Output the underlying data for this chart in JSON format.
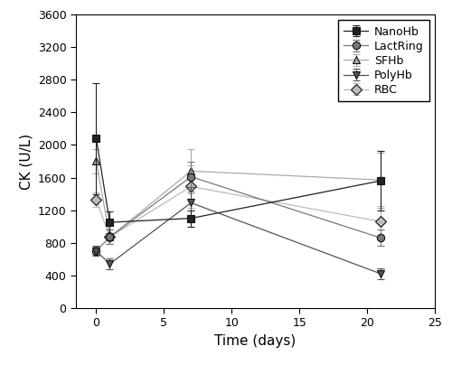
{
  "series": [
    {
      "name": "NanoHb",
      "x": [
        0,
        1,
        7,
        21
      ],
      "y": [
        2080,
        1050,
        1100,
        1560
      ],
      "yerr": [
        680,
        130,
        100,
        370
      ],
      "color": "#222222",
      "marker": "s",
      "label": "NanoHb",
      "zorder": 5
    },
    {
      "name": "LactRing",
      "x": [
        0,
        1,
        7,
        21
      ],
      "y": [
        700,
        870,
        1610,
        860
      ],
      "yerr": [
        50,
        90,
        180,
        100
      ],
      "color": "#777777",
      "marker": "o",
      "label": "LactRing",
      "zorder": 4
    },
    {
      "name": "SFHb",
      "x": [
        0,
        1,
        7,
        21
      ],
      "y": [
        1800,
        870,
        1680,
        1570
      ],
      "yerr": [
        150,
        90,
        270,
        340
      ],
      "color": "#aaaaaa",
      "marker": "^",
      "label": "SFHb",
      "zorder": 3
    },
    {
      "name": "PolyHb",
      "x": [
        0,
        1,
        7,
        21
      ],
      "y": [
        700,
        540,
        1290,
        420
      ],
      "yerr": [
        60,
        70,
        190,
        70
      ],
      "color": "#555555",
      "marker": "v",
      "label": "PolyHb",
      "zorder": 4
    },
    {
      "name": "RBC",
      "x": [
        0,
        1,
        7,
        21
      ],
      "y": [
        1330,
        870,
        1490,
        1060
      ],
      "yerr": [
        90,
        90,
        260,
        190
      ],
      "color": "#bbbbbb",
      "marker": "D",
      "label": "RBC",
      "zorder": 3
    }
  ],
  "xlabel": "Time (days)",
  "ylabel": "CK (U/L)",
  "xlim": [
    -1.5,
    25
  ],
  "ylim": [
    0,
    3600
  ],
  "yticks": [
    0,
    400,
    800,
    1200,
    1600,
    2000,
    2400,
    2800,
    3200,
    3600
  ],
  "xticks": [
    0,
    5,
    10,
    15,
    20,
    25
  ],
  "xtick_labels": [
    "0",
    "5",
    "10",
    "15",
    "20",
    "25"
  ],
  "figsize": [
    5.0,
    4.04
  ],
  "dpi": 100
}
